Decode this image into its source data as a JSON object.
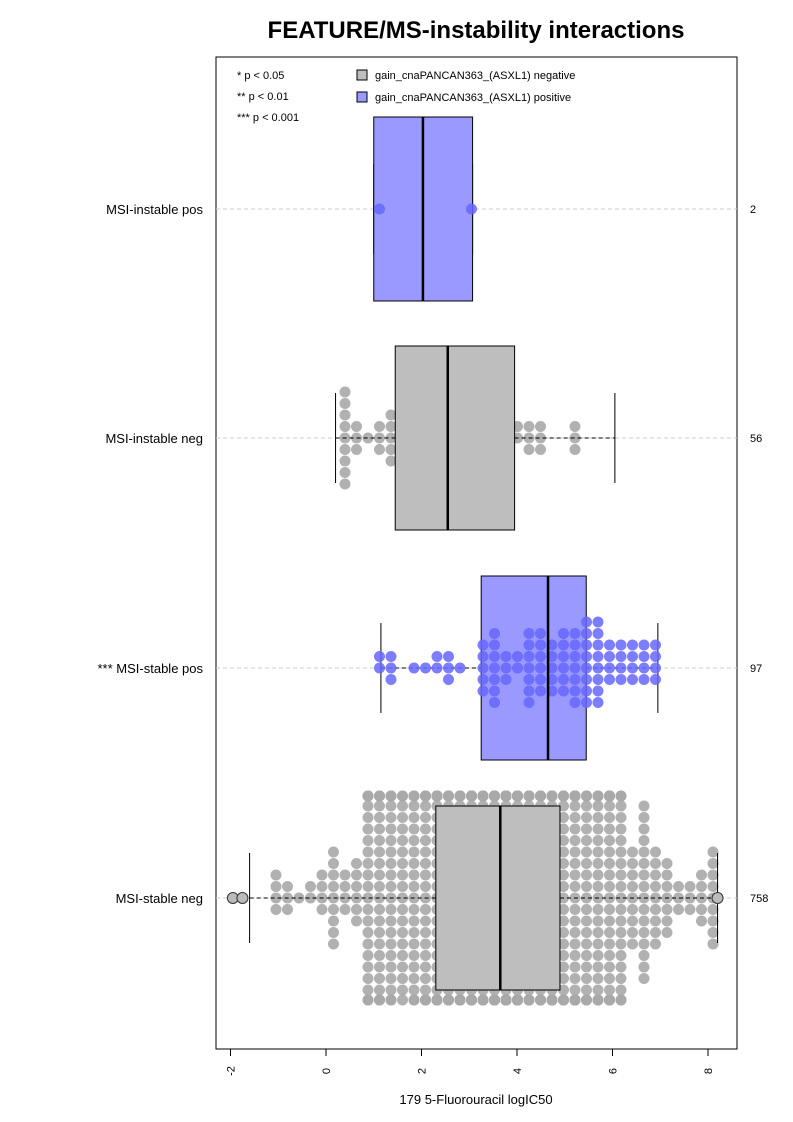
{
  "chart_data": {
    "type": "boxplot",
    "title": "FEATURE/MS-instability interactions",
    "xlabel": "179 5-Fluorouracil logIC50",
    "xlim": [
      -2.3,
      8.6
    ],
    "xticks": [
      -2,
      0,
      2,
      4,
      6,
      8
    ],
    "xtick_labels": [
      "-2",
      "0",
      "2",
      "4",
      "6",
      "8"
    ],
    "significance_legend": [
      "* p < 0.05",
      "** p < 0.01",
      "*** p < 0.001"
    ],
    "legend": [
      {
        "label": "gain_cnaPANCAN363_(ASXL1) negative",
        "color": "#bebebe"
      },
      {
        "label": "gain_cnaPANCAN363_(ASXL1) positive",
        "color": "#9999ff"
      }
    ],
    "groups": [
      {
        "label": "MSI-instable pos",
        "n": "2",
        "feature": "positive",
        "box_color": "#9999ff",
        "point_color": "#6666ff",
        "min": 1.0,
        "q1": 1.0,
        "median": 2.03,
        "q3": 3.07,
        "max": 3.07,
        "points": [
          1.0,
          3.07
        ]
      },
      {
        "label": "MSI-instable neg",
        "n": "56",
        "feature": "negative",
        "box_color": "#bebebe",
        "point_color": "#a8a8a8",
        "min": 0.2,
        "q1": 1.45,
        "median": 2.55,
        "q3": 3.95,
        "max": 6.05
      },
      {
        "label": "*** MSI-stable pos",
        "n": "97",
        "feature": "positive",
        "box_color": "#9999ff",
        "point_color": "#6666ff",
        "min": 1.15,
        "q1": 3.25,
        "median": 4.65,
        "q3": 5.45,
        "max": 6.95
      },
      {
        "label": "MSI-stable neg",
        "n": "758",
        "feature": "negative",
        "box_color": "#bebebe",
        "point_color": "#a8a8a8",
        "min": -1.6,
        "q1": 2.3,
        "median": 3.65,
        "q3": 4.9,
        "max": 8.2,
        "outliers": [
          -1.95,
          -1.75,
          8.2
        ]
      }
    ]
  }
}
